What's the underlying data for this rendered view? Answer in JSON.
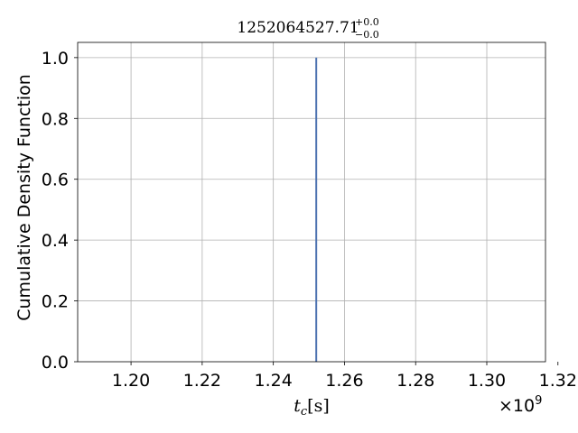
{
  "chart_data": {
    "type": "line",
    "title": {
      "main": "1252064527.71",
      "sup": "+0.0",
      "sub": "−0.0"
    },
    "xlabel": {
      "var": "t",
      "sub": "c",
      "unit": "[s]"
    },
    "ylabel": "Cumulative Density Function",
    "x_offset_label": {
      "base": "×10",
      "exp": "9"
    },
    "xlim": [
      1.185,
      1.3165
    ],
    "ylim": [
      0.0,
      1.05
    ],
    "x_ticks": [
      1.2,
      1.22,
      1.24,
      1.26,
      1.28,
      1.3,
      1.32
    ],
    "x_tick_labels": [
      "1.20",
      "1.22",
      "1.24",
      "1.26",
      "1.28",
      "1.30",
      "1.32"
    ],
    "y_ticks": [
      0.0,
      0.2,
      0.4,
      0.6,
      0.8,
      1.0
    ],
    "y_tick_labels": [
      "0.0",
      "0.2",
      "0.4",
      "0.6",
      "0.8",
      "1.0"
    ],
    "grid": true,
    "series": [
      {
        "color": "#4c72b0",
        "x": [
          1.2520645,
          1.2520645
        ],
        "y": [
          0.0,
          1.0
        ]
      }
    ]
  }
}
